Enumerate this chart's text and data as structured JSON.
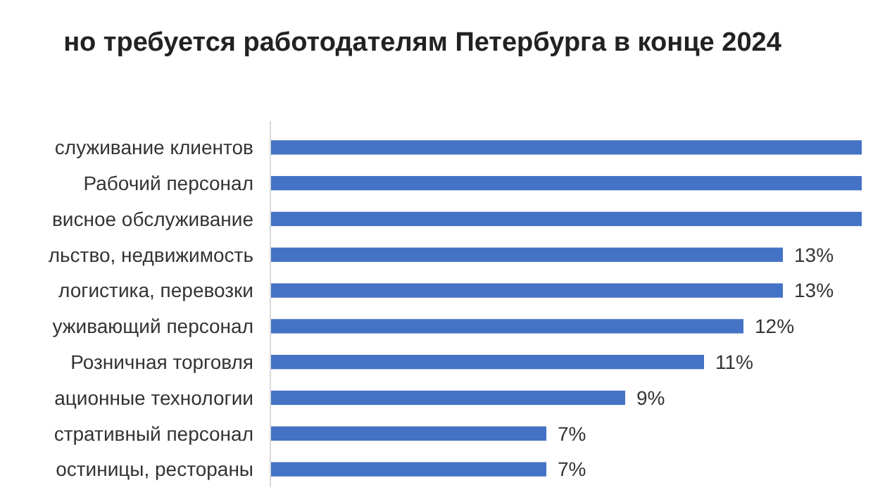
{
  "chart_data": {
    "type": "bar",
    "orientation": "horizontal",
    "title": "но требуется работодателям Петербурга в конце 2024",
    "categories": [
      "служивание клиентов",
      "Рабочий персонал",
      "висное обслуживание",
      "льство, недвижимость",
      "логистика, перевозки",
      "уживающий персонал",
      "Розничная торговля",
      "ационные технологии",
      "стративный персонал",
      "остиницы, рестораны"
    ],
    "values": [
      15,
      15,
      15,
      13,
      13,
      12,
      11,
      9,
      7,
      7
    ],
    "value_labels": [
      null,
      null,
      null,
      "13%",
      "13%",
      "12%",
      "11%",
      "9%",
      "7%",
      "7%"
    ],
    "color": "#4472c4"
  }
}
